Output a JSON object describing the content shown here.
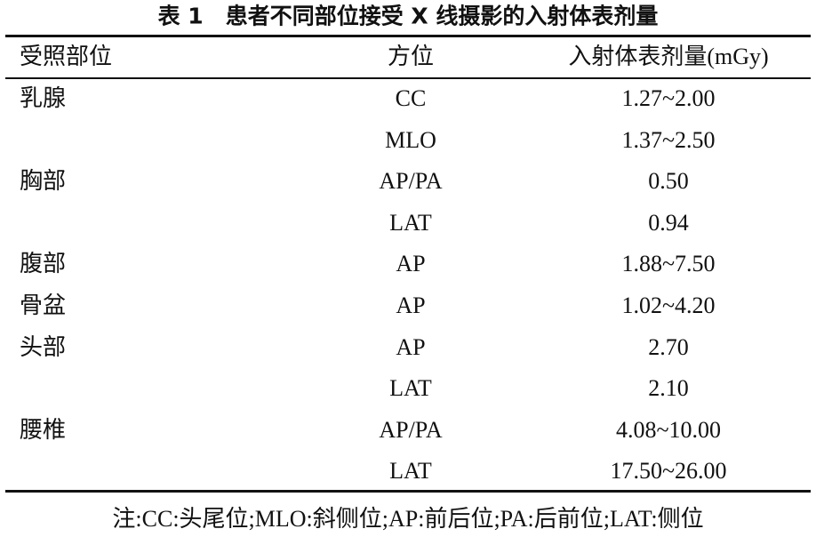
{
  "title": "表 1　患者不同部位接受 X 线摄影的入射体表剂量",
  "table": {
    "header": [
      "受照部位",
      "方位",
      "入射体表剂量(mGy)"
    ],
    "groups": [
      {
        "part": "乳腺",
        "rows": [
          [
            "CC",
            "1.27~2.00"
          ],
          [
            "MLO",
            "1.37~2.50"
          ]
        ]
      },
      {
        "part": "胸部",
        "rows": [
          [
            "AP/PA",
            "0.50"
          ],
          [
            "LAT",
            "0.94"
          ]
        ]
      },
      {
        "part": "腹部",
        "rows": [
          [
            "AP",
            "1.88~7.50"
          ]
        ]
      },
      {
        "part": "骨盆",
        "rows": [
          [
            "AP",
            "1.02~4.20"
          ]
        ]
      },
      {
        "part": "头部",
        "rows": [
          [
            "AP",
            "2.70"
          ],
          [
            "LAT",
            "2.10"
          ]
        ]
      },
      {
        "part": "腰椎",
        "rows": [
          [
            "AP/PA",
            "4.08~10.00"
          ],
          [
            "LAT",
            "17.50~26.00"
          ]
        ]
      }
    ]
  },
  "note": "注:CC:头尾位;MLO:斜侧位;AP:前后位;PA:后前位;LAT:侧位"
}
